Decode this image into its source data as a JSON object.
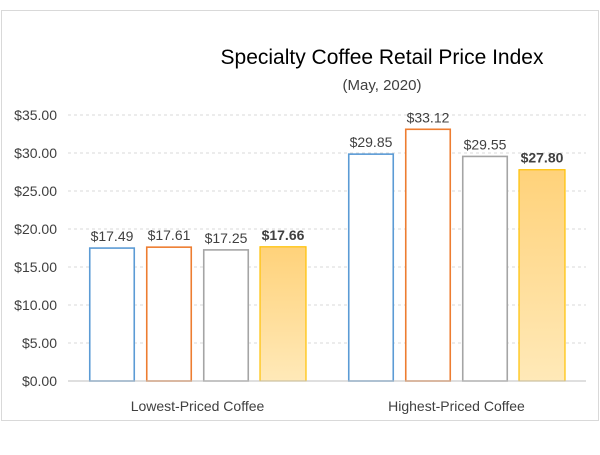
{
  "chart_data": {
    "type": "bar",
    "title": "Specialty Coffee Retail Price Index",
    "subtitle": "(May, 2020)",
    "categories": [
      "Lowest-Priced Coffee",
      "Highest-Priced Coffee"
    ],
    "series": [
      {
        "values": [
          17.49,
          29.85
        ],
        "labels": [
          "$17.49",
          "$29.85"
        ],
        "color": "#5b9bd5",
        "style": "outline"
      },
      {
        "values": [
          17.61,
          33.12
        ],
        "labels": [
          "$17.61",
          "$33.12"
        ],
        "color": "#ed7d31",
        "style": "outline"
      },
      {
        "values": [
          17.25,
          29.55
        ],
        "labels": [
          "$17.25",
          "$29.55"
        ],
        "color": "#a5a5a5",
        "style": "outline"
      },
      {
        "values": [
          17.66,
          27.8
        ],
        "labels": [
          "$17.66",
          "$27.80"
        ],
        "color": "#ffc000",
        "style": "gradient-fill",
        "label_bold": true
      }
    ],
    "y_ticks": [
      "$0.00",
      "$5.00",
      "$10.00",
      "$15.00",
      "$20.00",
      "$25.00",
      "$30.00",
      "$35.00"
    ],
    "ylim": [
      0,
      35
    ],
    "y_step": 5,
    "grid": true,
    "legend": "none",
    "xlabel": "",
    "ylabel": ""
  }
}
